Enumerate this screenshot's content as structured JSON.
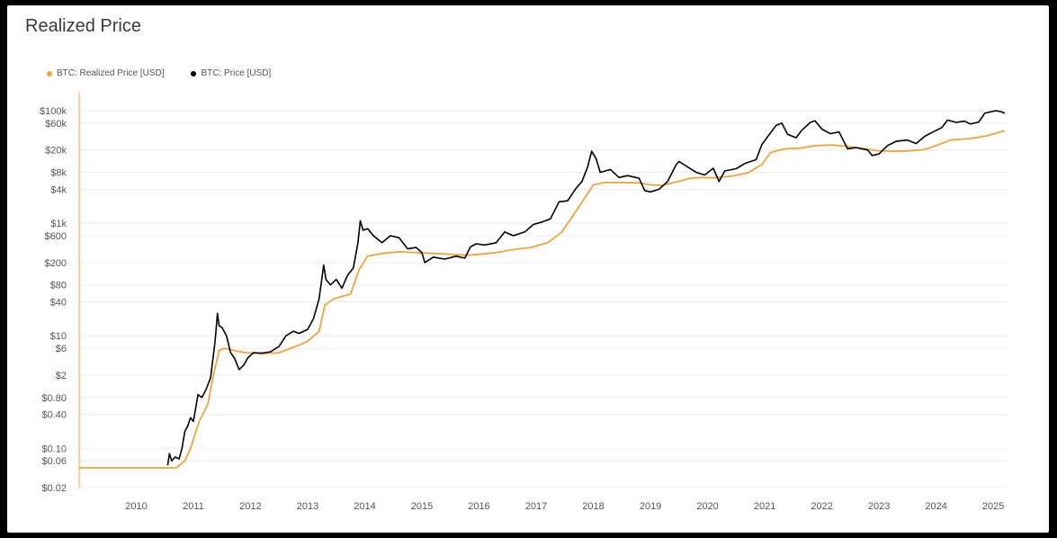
{
  "title": "Realized Price",
  "chart_data": {
    "type": "line",
    "title": "Realized Price",
    "y_scale": "log",
    "ylim": [
      0.02,
      150000
    ],
    "xlim": [
      2009.0,
      2025.25
    ],
    "y_ticks": [
      {
        "value": 100000,
        "label": "$100k"
      },
      {
        "value": 60000,
        "label": "$60k"
      },
      {
        "value": 20000,
        "label": "$20k"
      },
      {
        "value": 8000,
        "label": "$8k"
      },
      {
        "value": 4000,
        "label": "$4k"
      },
      {
        "value": 1000,
        "label": "$1k"
      },
      {
        "value": 600,
        "label": "$600"
      },
      {
        "value": 200,
        "label": "$200"
      },
      {
        "value": 80,
        "label": "$80"
      },
      {
        "value": 40,
        "label": "$40"
      },
      {
        "value": 10,
        "label": "$10"
      },
      {
        "value": 6,
        "label": "$6"
      },
      {
        "value": 2,
        "label": "$2"
      },
      {
        "value": 0.8,
        "label": "$0.80"
      },
      {
        "value": 0.4,
        "label": "$0.40"
      },
      {
        "value": 0.1,
        "label": "$0.10"
      },
      {
        "value": 0.06,
        "label": "$0.06"
      },
      {
        "value": 0.02,
        "label": "$0.02"
      }
    ],
    "x_ticks": [
      "2010",
      "2011",
      "2012",
      "2013",
      "2014",
      "2015",
      "2016",
      "2017",
      "2018",
      "2019",
      "2020",
      "2021",
      "2022",
      "2023",
      "2024",
      "2025"
    ],
    "legend_position": "top-left",
    "series": [
      {
        "name": "BTC: Realized Price [USD]",
        "color": "#f0a43c",
        "points": [
          [
            2009.0,
            0.045
          ],
          [
            2010.5,
            0.045
          ],
          [
            2010.7,
            0.045
          ],
          [
            2010.85,
            0.06
          ],
          [
            2010.95,
            0.1
          ],
          [
            2011.1,
            0.3
          ],
          [
            2011.25,
            0.6
          ],
          [
            2011.35,
            2
          ],
          [
            2011.45,
            5.5
          ],
          [
            2011.55,
            6
          ],
          [
            2011.7,
            5.5
          ],
          [
            2011.9,
            5
          ],
          [
            2012.2,
            4.8
          ],
          [
            2012.5,
            5
          ],
          [
            2012.8,
            6.5
          ],
          [
            2013.0,
            8
          ],
          [
            2013.2,
            12
          ],
          [
            2013.3,
            35
          ],
          [
            2013.45,
            45
          ],
          [
            2013.6,
            50
          ],
          [
            2013.75,
            55
          ],
          [
            2013.9,
            150
          ],
          [
            2014.05,
            260
          ],
          [
            2014.3,
            290
          ],
          [
            2014.6,
            310
          ],
          [
            2014.9,
            300
          ],
          [
            2015.2,
            290
          ],
          [
            2015.5,
            280
          ],
          [
            2015.8,
            270
          ],
          [
            2016.0,
            280
          ],
          [
            2016.3,
            300
          ],
          [
            2016.6,
            340
          ],
          [
            2016.9,
            370
          ],
          [
            2017.2,
            450
          ],
          [
            2017.45,
            700
          ],
          [
            2017.65,
            1400
          ],
          [
            2017.85,
            2800
          ],
          [
            2018.0,
            4800
          ],
          [
            2018.2,
            5300
          ],
          [
            2018.5,
            5300
          ],
          [
            2018.8,
            5200
          ],
          [
            2019.0,
            4800
          ],
          [
            2019.2,
            4700
          ],
          [
            2019.45,
            5400
          ],
          [
            2019.7,
            6300
          ],
          [
            2019.9,
            6500
          ],
          [
            2020.1,
            6400
          ],
          [
            2020.4,
            6800
          ],
          [
            2020.7,
            7800
          ],
          [
            2020.95,
            11000
          ],
          [
            2021.1,
            18000
          ],
          [
            2021.35,
            21000
          ],
          [
            2021.6,
            21500
          ],
          [
            2021.9,
            24000
          ],
          [
            2022.2,
            24500
          ],
          [
            2022.45,
            23000
          ],
          [
            2022.75,
            21000
          ],
          [
            2022.95,
            19500
          ],
          [
            2023.2,
            19000
          ],
          [
            2023.5,
            19200
          ],
          [
            2023.8,
            20500
          ],
          [
            2024.0,
            24000
          ],
          [
            2024.25,
            30000
          ],
          [
            2024.6,
            32000
          ],
          [
            2024.9,
            36000
          ],
          [
            2025.2,
            44000
          ]
        ]
      },
      {
        "name": "BTC: Price [USD]",
        "color": "#000000",
        "points": [
          [
            2010.55,
            0.05
          ],
          [
            2010.58,
            0.08
          ],
          [
            2010.62,
            0.06
          ],
          [
            2010.68,
            0.07
          ],
          [
            2010.75,
            0.065
          ],
          [
            2010.8,
            0.1
          ],
          [
            2010.85,
            0.2
          ],
          [
            2010.9,
            0.25
          ],
          [
            2010.95,
            0.35
          ],
          [
            2011.0,
            0.3
          ],
          [
            2011.08,
            0.9
          ],
          [
            2011.15,
            0.8
          ],
          [
            2011.22,
            1.1
          ],
          [
            2011.3,
            1.8
          ],
          [
            2011.38,
            8
          ],
          [
            2011.42,
            25
          ],
          [
            2011.45,
            15
          ],
          [
            2011.5,
            14
          ],
          [
            2011.58,
            10
          ],
          [
            2011.65,
            5
          ],
          [
            2011.72,
            4
          ],
          [
            2011.8,
            2.5
          ],
          [
            2011.88,
            3
          ],
          [
            2011.95,
            4
          ],
          [
            2012.05,
            5
          ],
          [
            2012.2,
            4.9
          ],
          [
            2012.35,
            5.2
          ],
          [
            2012.5,
            6.5
          ],
          [
            2012.62,
            10
          ],
          [
            2012.75,
            12
          ],
          [
            2012.85,
            11
          ],
          [
            2013.0,
            13
          ],
          [
            2013.1,
            20
          ],
          [
            2013.2,
            45
          ],
          [
            2013.28,
            180
          ],
          [
            2013.32,
            100
          ],
          [
            2013.4,
            80
          ],
          [
            2013.5,
            100
          ],
          [
            2013.6,
            70
          ],
          [
            2013.7,
            120
          ],
          [
            2013.8,
            160
          ],
          [
            2013.88,
            450
          ],
          [
            2013.92,
            1100
          ],
          [
            2013.97,
            750
          ],
          [
            2014.05,
            800
          ],
          [
            2014.15,
            600
          ],
          [
            2014.3,
            450
          ],
          [
            2014.45,
            600
          ],
          [
            2014.6,
            550
          ],
          [
            2014.75,
            350
          ],
          [
            2014.9,
            370
          ],
          [
            2015.0,
            300
          ],
          [
            2015.05,
            200
          ],
          [
            2015.2,
            250
          ],
          [
            2015.4,
            230
          ],
          [
            2015.6,
            260
          ],
          [
            2015.75,
            240
          ],
          [
            2015.85,
            380
          ],
          [
            2015.95,
            430
          ],
          [
            2016.1,
            410
          ],
          [
            2016.3,
            450
          ],
          [
            2016.45,
            700
          ],
          [
            2016.6,
            600
          ],
          [
            2016.8,
            700
          ],
          [
            2016.95,
            950
          ],
          [
            2017.1,
            1050
          ],
          [
            2017.25,
            1200
          ],
          [
            2017.4,
            2400
          ],
          [
            2017.55,
            2500
          ],
          [
            2017.7,
            4200
          ],
          [
            2017.8,
            5500
          ],
          [
            2017.9,
            10000
          ],
          [
            2017.97,
            19000
          ],
          [
            2018.05,
            14000
          ],
          [
            2018.12,
            8000
          ],
          [
            2018.3,
            9000
          ],
          [
            2018.45,
            6500
          ],
          [
            2018.6,
            7000
          ],
          [
            2018.8,
            6300
          ],
          [
            2018.9,
            3800
          ],
          [
            2019.0,
            3600
          ],
          [
            2019.15,
            4000
          ],
          [
            2019.3,
            5500
          ],
          [
            2019.45,
            11000
          ],
          [
            2019.5,
            12500
          ],
          [
            2019.65,
            10000
          ],
          [
            2019.8,
            8000
          ],
          [
            2019.95,
            7200
          ],
          [
            2020.1,
            9500
          ],
          [
            2020.2,
            5500
          ],
          [
            2020.3,
            8500
          ],
          [
            2020.5,
            9300
          ],
          [
            2020.65,
            11500
          ],
          [
            2020.85,
            13500
          ],
          [
            2020.95,
            25000
          ],
          [
            2021.1,
            40000
          ],
          [
            2021.2,
            55000
          ],
          [
            2021.3,
            60000
          ],
          [
            2021.4,
            38000
          ],
          [
            2021.55,
            33000
          ],
          [
            2021.65,
            45000
          ],
          [
            2021.8,
            62000
          ],
          [
            2021.88,
            66000
          ],
          [
            2022.0,
            47000
          ],
          [
            2022.15,
            39000
          ],
          [
            2022.3,
            42000
          ],
          [
            2022.45,
            21000
          ],
          [
            2022.6,
            22000
          ],
          [
            2022.8,
            20000
          ],
          [
            2022.88,
            16000
          ],
          [
            2023.0,
            17000
          ],
          [
            2023.15,
            24000
          ],
          [
            2023.3,
            28500
          ],
          [
            2023.5,
            30000
          ],
          [
            2023.65,
            26000
          ],
          [
            2023.8,
            35000
          ],
          [
            2023.95,
            42000
          ],
          [
            2024.1,
            50000
          ],
          [
            2024.2,
            68000
          ],
          [
            2024.35,
            62000
          ],
          [
            2024.5,
            65000
          ],
          [
            2024.6,
            58000
          ],
          [
            2024.75,
            63000
          ],
          [
            2024.85,
            90000
          ],
          [
            2024.95,
            95000
          ],
          [
            2025.05,
            100000
          ],
          [
            2025.15,
            95000
          ],
          [
            2025.2,
            90000
          ]
        ]
      }
    ]
  }
}
